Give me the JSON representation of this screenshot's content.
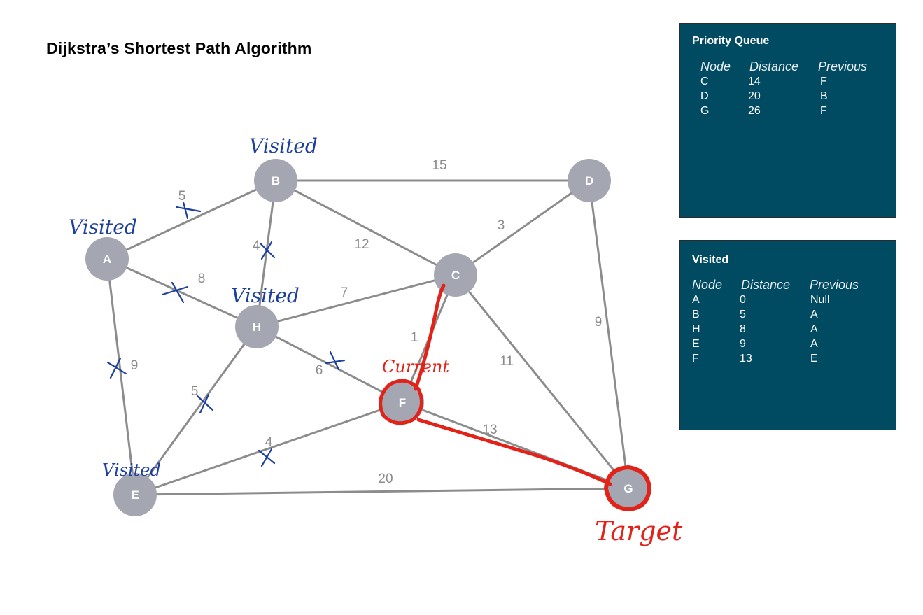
{
  "title": "Dijkstra’s Shortest Path Algorithm",
  "colors": {
    "node_fill": "#a4a7b1",
    "edge": "#8c8c8c",
    "panel_bg": "#004a62",
    "annotation_blue": "#1d3f9e",
    "annotation_red": "#e2231a"
  },
  "nodes": [
    {
      "id": "A",
      "label": "A"
    },
    {
      "id": "B",
      "label": "B"
    },
    {
      "id": "C",
      "label": "C"
    },
    {
      "id": "D",
      "label": "D"
    },
    {
      "id": "E",
      "label": "E"
    },
    {
      "id": "F",
      "label": "F"
    },
    {
      "id": "G",
      "label": "G"
    },
    {
      "id": "H",
      "label": "H"
    }
  ],
  "edges": [
    {
      "from": "A",
      "to": "B",
      "weight": "5"
    },
    {
      "from": "A",
      "to": "H",
      "weight": "8"
    },
    {
      "from": "A",
      "to": "E",
      "weight": "9"
    },
    {
      "from": "B",
      "to": "D",
      "weight": "15"
    },
    {
      "from": "B",
      "to": "C",
      "weight": "12"
    },
    {
      "from": "B",
      "to": "H",
      "weight": "4"
    },
    {
      "from": "D",
      "to": "C",
      "weight": "3"
    },
    {
      "from": "D",
      "to": "G",
      "weight": "9"
    },
    {
      "from": "H",
      "to": "C",
      "weight": "7"
    },
    {
      "from": "H",
      "to": "F",
      "weight": "6"
    },
    {
      "from": "H",
      "to": "E",
      "weight": "5"
    },
    {
      "from": "C",
      "to": "F",
      "weight": "1"
    },
    {
      "from": "C",
      "to": "G",
      "weight": "11"
    },
    {
      "from": "F",
      "to": "G",
      "weight": "13"
    },
    {
      "from": "F",
      "to": "E",
      "weight": "4"
    },
    {
      "from": "E",
      "to": "G",
      "weight": "20"
    }
  ],
  "annotations": {
    "visited": "Visited",
    "current": "Current",
    "target": "Target"
  },
  "priority_queue": {
    "title": "Priority Queue",
    "headers": [
      "Node",
      "Distance",
      "Previous"
    ],
    "rows": [
      [
        "C",
        "14",
        "F"
      ],
      [
        "D",
        "20",
        "B"
      ],
      [
        "G",
        "26",
        "F"
      ]
    ]
  },
  "visited_table": {
    "title": "Visited",
    "headers": [
      "Node",
      "Distance",
      "Previous"
    ],
    "rows": [
      [
        "A",
        "0",
        "Null"
      ],
      [
        "B",
        "5",
        "A"
      ],
      [
        "H",
        "8",
        "A"
      ],
      [
        "E",
        "9",
        "A"
      ],
      [
        "F",
        "13",
        "E"
      ]
    ]
  }
}
